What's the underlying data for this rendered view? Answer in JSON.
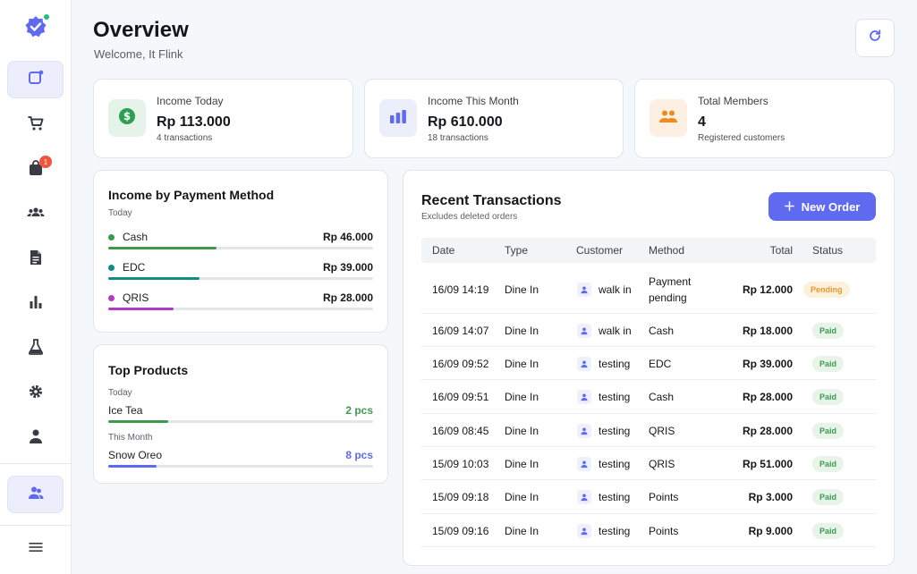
{
  "header": {
    "title": "Overview",
    "welcome": "Welcome, It Flink"
  },
  "sidebar": {
    "items": [
      {
        "icon": "dashboard-icon",
        "active": true
      },
      {
        "icon": "cart-icon"
      },
      {
        "icon": "bag-icon",
        "badge": "1"
      },
      {
        "icon": "group-icon"
      },
      {
        "icon": "document-icon"
      },
      {
        "icon": "bar-chart-icon"
      },
      {
        "icon": "flask-icon"
      },
      {
        "icon": "gear-icon"
      },
      {
        "icon": "person-icon"
      }
    ],
    "bottom": [
      {
        "icon": "members-icon",
        "active": true
      },
      {
        "icon": "menu-icon"
      }
    ]
  },
  "stats": [
    {
      "label": "Income Today",
      "value": "Rp 113.000",
      "sub": "4 transactions",
      "icon": "dollar-icon",
      "color": "#2e9e4f"
    },
    {
      "label": "Income This Month",
      "value": "Rp 610.000",
      "sub": "18 transactions",
      "icon": "bar-chart-icon",
      "color": "#5f6af0"
    },
    {
      "label": "Total Members",
      "value": "4",
      "sub": "Registered customers",
      "icon": "group-icon",
      "color": "#f08a1c"
    }
  ],
  "payment_methods": {
    "title": "Income by Payment Method",
    "period": "Today",
    "items": [
      {
        "name": "Cash",
        "amount": "Rp 46.000",
        "share": 0.41,
        "color": "#3d9a4d"
      },
      {
        "name": "EDC",
        "amount": "Rp 39.000",
        "share": 0.345,
        "color": "#138a8a"
      },
      {
        "name": "QRIS",
        "amount": "Rp 28.000",
        "share": 0.248,
        "color": "#b03cc0"
      }
    ]
  },
  "top_products": {
    "title": "Top Products",
    "groups": [
      {
        "period": "Today",
        "name": "Ice Tea",
        "qty": "2 pcs",
        "share": 0.225,
        "color": "#3d9a4d"
      },
      {
        "period": "This Month",
        "name": "Snow Oreo",
        "qty": "8 pcs",
        "share": 0.182,
        "color": "#5f6af0"
      }
    ]
  },
  "transactions": {
    "title": "Recent Transactions",
    "subtitle": "Excludes deleted orders",
    "new_order_label": "New Order",
    "columns": [
      "Date",
      "Type",
      "Customer",
      "Method",
      "Total",
      "Status"
    ],
    "rows": [
      {
        "date": "16/09 14:19",
        "type": "Dine In",
        "customer": "walk in",
        "method_line1": "Payment",
        "method_line2": "pending",
        "total": "Rp 12.000",
        "status": "Pending"
      },
      {
        "date": "16/09 14:07",
        "type": "Dine In",
        "customer": "walk in",
        "method_line1": "Cash",
        "method_line2": "",
        "total": "Rp 18.000",
        "status": "Paid"
      },
      {
        "date": "16/09 09:52",
        "type": "Dine In",
        "customer": "testing",
        "method_line1": "EDC",
        "method_line2": "",
        "total": "Rp 39.000",
        "status": "Paid"
      },
      {
        "date": "16/09 09:51",
        "type": "Dine In",
        "customer": "testing",
        "method_line1": "Cash",
        "method_line2": "",
        "total": "Rp 28.000",
        "status": "Paid"
      },
      {
        "date": "16/09 08:45",
        "type": "Dine In",
        "customer": "testing",
        "method_line1": "QRIS",
        "method_line2": "",
        "total": "Rp 28.000",
        "status": "Paid"
      },
      {
        "date": "15/09 10:03",
        "type": "Dine In",
        "customer": "testing",
        "method_line1": "QRIS",
        "method_line2": "",
        "total": "Rp 51.000",
        "status": "Paid"
      },
      {
        "date": "15/09 09:18",
        "type": "Dine In",
        "customer": "testing",
        "method_line1": "Points",
        "method_line2": "",
        "total": "Rp 3.000",
        "status": "Paid"
      },
      {
        "date": "15/09 09:16",
        "type": "Dine In",
        "customer": "testing",
        "method_line1": "Points",
        "method_line2": "",
        "total": "Rp 9.000",
        "status": "Paid"
      }
    ]
  }
}
